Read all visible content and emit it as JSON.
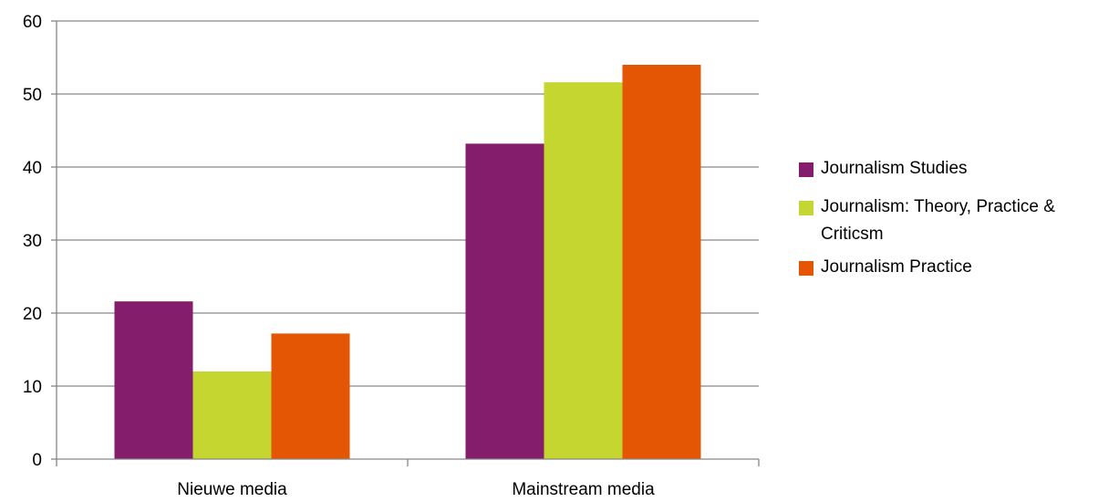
{
  "chart_data": {
    "type": "bar",
    "title": "",
    "xlabel": "",
    "ylabel": "",
    "categories": [
      "Nieuwe media",
      "Mainstream media"
    ],
    "series": [
      {
        "name": "Journalism Studies",
        "color": "#841D6B",
        "values": [
          21.6,
          43.2
        ]
      },
      {
        "name": "Journalism: Theory, Practice & Criticsm",
        "color": "#C5D630",
        "values": [
          12.0,
          51.6
        ]
      },
      {
        "name": "Journalism Practice",
        "color": "#E55604",
        "values": [
          17.2,
          54.0
        ]
      }
    ],
    "ylim": [
      0,
      60
    ],
    "yticks": [
      0,
      10,
      20,
      30,
      40,
      50,
      60
    ],
    "ytick_labels": [
      "0",
      "10",
      "20",
      "30",
      "40",
      "50",
      "60"
    ],
    "grid": true,
    "grid_color": "#868686",
    "legend_position": "right"
  }
}
